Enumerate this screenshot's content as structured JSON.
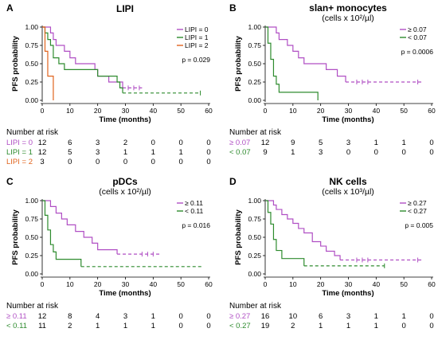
{
  "chart_data": [
    {
      "panel_letter": "A",
      "type": "line",
      "title": "LIPI",
      "subtitle": "",
      "xlabel": "Time (months)",
      "ylabel": "PFS probability",
      "xlim": [
        0,
        60
      ],
      "ylim": [
        0,
        1
      ],
      "xticks": [
        0,
        10,
        20,
        30,
        40,
        50,
        60
      ],
      "yticks": [
        0.0,
        0.25,
        0.5,
        0.75,
        1.0
      ],
      "p_value": "p = 0.029",
      "legend_position": "top-right",
      "series": [
        {
          "name": "LIPI = 0",
          "color": "#b04fc4",
          "steps": [
            [
              0,
              1.0
            ],
            [
              3,
              0.92
            ],
            [
              4,
              0.83
            ],
            [
              5,
              0.75
            ],
            [
              8,
              0.67
            ],
            [
              10,
              0.58
            ],
            [
              12,
              0.5
            ],
            [
              19,
              0.42
            ],
            [
              20,
              0.33
            ],
            [
              24,
              0.25
            ],
            [
              29,
              0.17
            ],
            [
              36,
              0.17
            ]
          ],
          "censored": [
            [
              31,
              0.17
            ],
            [
              33,
              0.17
            ],
            [
              35,
              0.17
            ]
          ]
        },
        {
          "name": "LIPI = 1",
          "color": "#2e8b2e",
          "steps": [
            [
              0,
              1.0
            ],
            [
              1,
              0.92
            ],
            [
              2,
              0.83
            ],
            [
              3,
              0.75
            ],
            [
              4,
              0.58
            ],
            [
              6,
              0.5
            ],
            [
              8,
              0.42
            ],
            [
              20,
              0.33
            ],
            [
              27,
              0.25
            ],
            [
              28,
              0.17
            ],
            [
              29,
              0.1
            ],
            [
              57,
              0.1
            ]
          ],
          "censored": [
            [
              57,
              0.1
            ]
          ]
        },
        {
          "name": "LIPI = 2",
          "color": "#e0641e",
          "steps": [
            [
              0,
              1.0
            ],
            [
              1,
              0.67
            ],
            [
              2,
              0.33
            ],
            [
              4,
              0.0
            ]
          ],
          "censored": []
        }
      ],
      "risk_table": {
        "header": "Number at risk",
        "rows": [
          {
            "label": "LIPI = 0",
            "color": "#b04fc4",
            "values": [
              "12",
              "6",
              "3",
              "2",
              "0",
              "0",
              "0"
            ]
          },
          {
            "label": "LIPI = 1",
            "color": "#2e8b2e",
            "values": [
              "12",
              "5",
              "3",
              "1",
              "1",
              "1",
              "0"
            ]
          },
          {
            "label": "LIPI = 2",
            "color": "#e0641e",
            "values": [
              "3",
              "0",
              "0",
              "0",
              "0",
              "0",
              "0"
            ]
          }
        ]
      }
    },
    {
      "panel_letter": "B",
      "type": "line",
      "title": "slan+ monocytes",
      "subtitle": "(cells x 10²/µl)",
      "xlabel": "Time (months)",
      "ylabel": "PFS probability",
      "xlim": [
        0,
        60
      ],
      "ylim": [
        0,
        1
      ],
      "xticks": [
        0,
        10,
        20,
        30,
        40,
        50,
        60
      ],
      "yticks": [
        0.0,
        0.25,
        0.5,
        0.75,
        1.0
      ],
      "p_value": "p = 0.0006",
      "legend_position": "top-right",
      "series": [
        {
          "name": "≥ 0.07",
          "color": "#b04fc4",
          "steps": [
            [
              0,
              1.0
            ],
            [
              4,
              0.92
            ],
            [
              5,
              0.83
            ],
            [
              8,
              0.75
            ],
            [
              10,
              0.67
            ],
            [
              12,
              0.58
            ],
            [
              14,
              0.5
            ],
            [
              22,
              0.42
            ],
            [
              26,
              0.33
            ],
            [
              29,
              0.25
            ],
            [
              57,
              0.25
            ]
          ],
          "censored": [
            [
              33,
              0.25
            ],
            [
              35,
              0.25
            ],
            [
              37,
              0.25
            ],
            [
              55,
              0.25
            ]
          ]
        },
        {
          "name": "< 0.07",
          "color": "#2e8b2e",
          "steps": [
            [
              0,
              1.0
            ],
            [
              1,
              0.78
            ],
            [
              2,
              0.56
            ],
            [
              3,
              0.33
            ],
            [
              4,
              0.22
            ],
            [
              5,
              0.11
            ],
            [
              18,
              0.11
            ],
            [
              19,
              0.0
            ]
          ],
          "censored": []
        }
      ],
      "risk_table": {
        "header": "Number at risk",
        "rows": [
          {
            "label": "≥ 0.07",
            "color": "#b04fc4",
            "values": [
              "12",
              "9",
              "5",
              "3",
              "1",
              "1",
              "0"
            ]
          },
          {
            "label": "< 0.07",
            "color": "#2e8b2e",
            "values": [
              "9",
              "1",
              "3",
              "0",
              "0",
              "0",
              "0"
            ]
          }
        ]
      }
    },
    {
      "panel_letter": "C",
      "type": "line",
      "title": "pDCs",
      "subtitle": "(cells x 10²/µl)",
      "xlabel": "Time (months)",
      "ylabel": "PFS probability",
      "xlim": [
        0,
        60
      ],
      "ylim": [
        0,
        1
      ],
      "xticks": [
        0,
        10,
        20,
        30,
        40,
        50,
        60
      ],
      "yticks": [
        0.0,
        0.25,
        0.5,
        0.75,
        1.0
      ],
      "p_value": "p = 0.016",
      "legend_position": "top-right",
      "series": [
        {
          "name": "≥ 0.11",
          "color": "#b04fc4",
          "steps": [
            [
              0,
              1.0
            ],
            [
              3,
              0.92
            ],
            [
              5,
              0.83
            ],
            [
              7,
              0.75
            ],
            [
              9,
              0.67
            ],
            [
              12,
              0.58
            ],
            [
              15,
              0.5
            ],
            [
              18,
              0.42
            ],
            [
              20,
              0.33
            ],
            [
              27,
              0.27
            ],
            [
              43,
              0.27
            ]
          ],
          "censored": [
            [
              36,
              0.27
            ],
            [
              38,
              0.27
            ],
            [
              40,
              0.27
            ]
          ]
        },
        {
          "name": "< 0.11",
          "color": "#2e8b2e",
          "steps": [
            [
              0,
              1.0
            ],
            [
              1,
              0.8
            ],
            [
              2,
              0.6
            ],
            [
              3,
              0.4
            ],
            [
              4,
              0.3
            ],
            [
              5,
              0.2
            ],
            [
              14,
              0.1
            ],
            [
              58,
              0.1
            ]
          ],
          "censored": []
        }
      ],
      "risk_table": {
        "header": "Number at risk",
        "rows": [
          {
            "label": "≥ 0.11",
            "color": "#b04fc4",
            "values": [
              "12",
              "8",
              "4",
              "3",
              "1",
              "0",
              "0"
            ]
          },
          {
            "label": "< 0.11",
            "color": "#2e8b2e",
            "values": [
              "11",
              "2",
              "1",
              "1",
              "1",
              "0",
              "0"
            ]
          }
        ]
      }
    },
    {
      "panel_letter": "D",
      "type": "line",
      "title": "NK cells",
      "subtitle": "(cells x 10³/µl)",
      "xlabel": "Time (months)",
      "ylabel": "PFS probability",
      "xlim": [
        0,
        60
      ],
      "ylim": [
        0,
        1
      ],
      "xticks": [
        0,
        10,
        20,
        30,
        40,
        50,
        60
      ],
      "yticks": [
        0.0,
        0.25,
        0.5,
        0.75,
        1.0
      ],
      "p_value": "p = 0.005",
      "legend_position": "top-right",
      "series": [
        {
          "name": "≥ 0.27",
          "color": "#b04fc4",
          "steps": [
            [
              0,
              1.0
            ],
            [
              3,
              0.94
            ],
            [
              4,
              0.88
            ],
            [
              6,
              0.81
            ],
            [
              8,
              0.75
            ],
            [
              10,
              0.69
            ],
            [
              12,
              0.62
            ],
            [
              14,
              0.56
            ],
            [
              17,
              0.44
            ],
            [
              20,
              0.38
            ],
            [
              22,
              0.31
            ],
            [
              25,
              0.25
            ],
            [
              27,
              0.19
            ],
            [
              57,
              0.19
            ]
          ],
          "censored": [
            [
              33,
              0.19
            ],
            [
              35,
              0.19
            ],
            [
              37,
              0.19
            ],
            [
              55,
              0.19
            ]
          ]
        },
        {
          "name": "< 0.27",
          "color": "#2e8b2e",
          "steps": [
            [
              0,
              1.0
            ],
            [
              1,
              0.84
            ],
            [
              2,
              0.68
            ],
            [
              3,
              0.47
            ],
            [
              4,
              0.32
            ],
            [
              6,
              0.21
            ],
            [
              14,
              0.11
            ],
            [
              43,
              0.11
            ]
          ],
          "censored": [
            [
              43,
              0.11
            ]
          ]
        }
      ],
      "risk_table": {
        "header": "Number at risk",
        "rows": [
          {
            "label": "≥ 0.27",
            "color": "#b04fc4",
            "values": [
              "16",
              "10",
              "6",
              "3",
              "1",
              "1",
              "0"
            ]
          },
          {
            "label": "< 0.27",
            "color": "#2e8b2e",
            "values": [
              "19",
              "2",
              "1",
              "1",
              "1",
              "0",
              "0"
            ]
          }
        ]
      }
    }
  ]
}
